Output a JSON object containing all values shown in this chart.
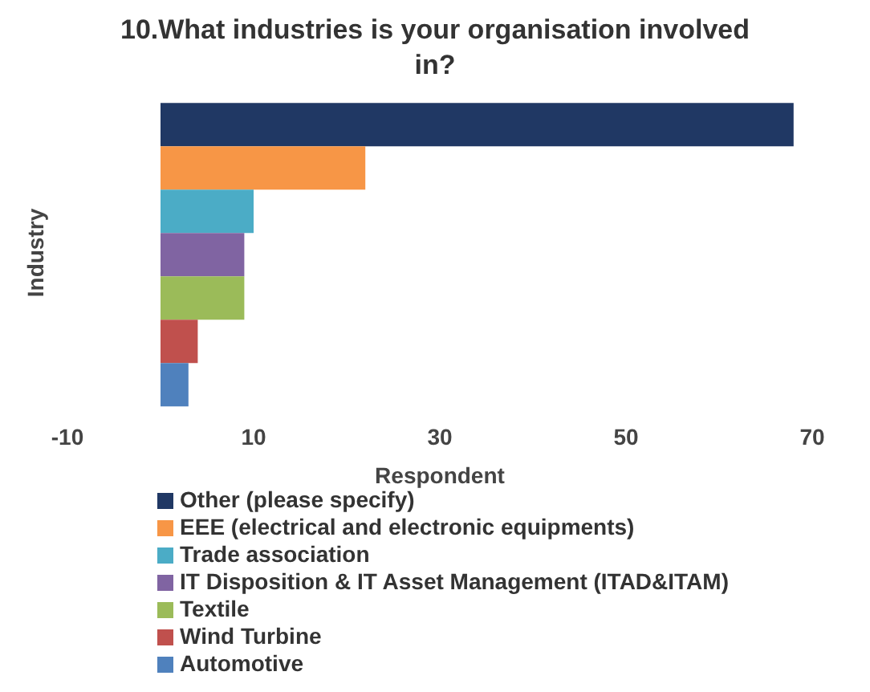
{
  "chart_data": {
    "type": "bar",
    "orientation": "horizontal",
    "title": "10.What industries is your organisation involved in?",
    "xlabel": "Respondent",
    "ylabel": "Industry",
    "categories": [
      null
    ],
    "xlim": [
      -10,
      70
    ],
    "xticks": [
      -10,
      10,
      30,
      50,
      70
    ],
    "grid": false,
    "legend": "bottom",
    "series": [
      {
        "name": "Other (please specify)",
        "color": "#203864",
        "values": [
          68
        ]
      },
      {
        "name": "EEE (electrical and electronic equipments)",
        "color": "#f79646",
        "values": [
          22
        ]
      },
      {
        "name": "Trade association",
        "color": "#4bacc6",
        "values": [
          10
        ]
      },
      {
        "name": "IT Disposition & IT Asset Management (ITAD&ITAM)",
        "color": "#8064a2",
        "values": [
          9
        ]
      },
      {
        "name": "Textile",
        "color": "#9bbb59",
        "values": [
          9
        ]
      },
      {
        "name": "Wind Turbine",
        "color": "#c0504d",
        "values": [
          4
        ]
      },
      {
        "name": "Automotive",
        "color": "#4f81bd",
        "values": [
          3
        ]
      }
    ]
  }
}
